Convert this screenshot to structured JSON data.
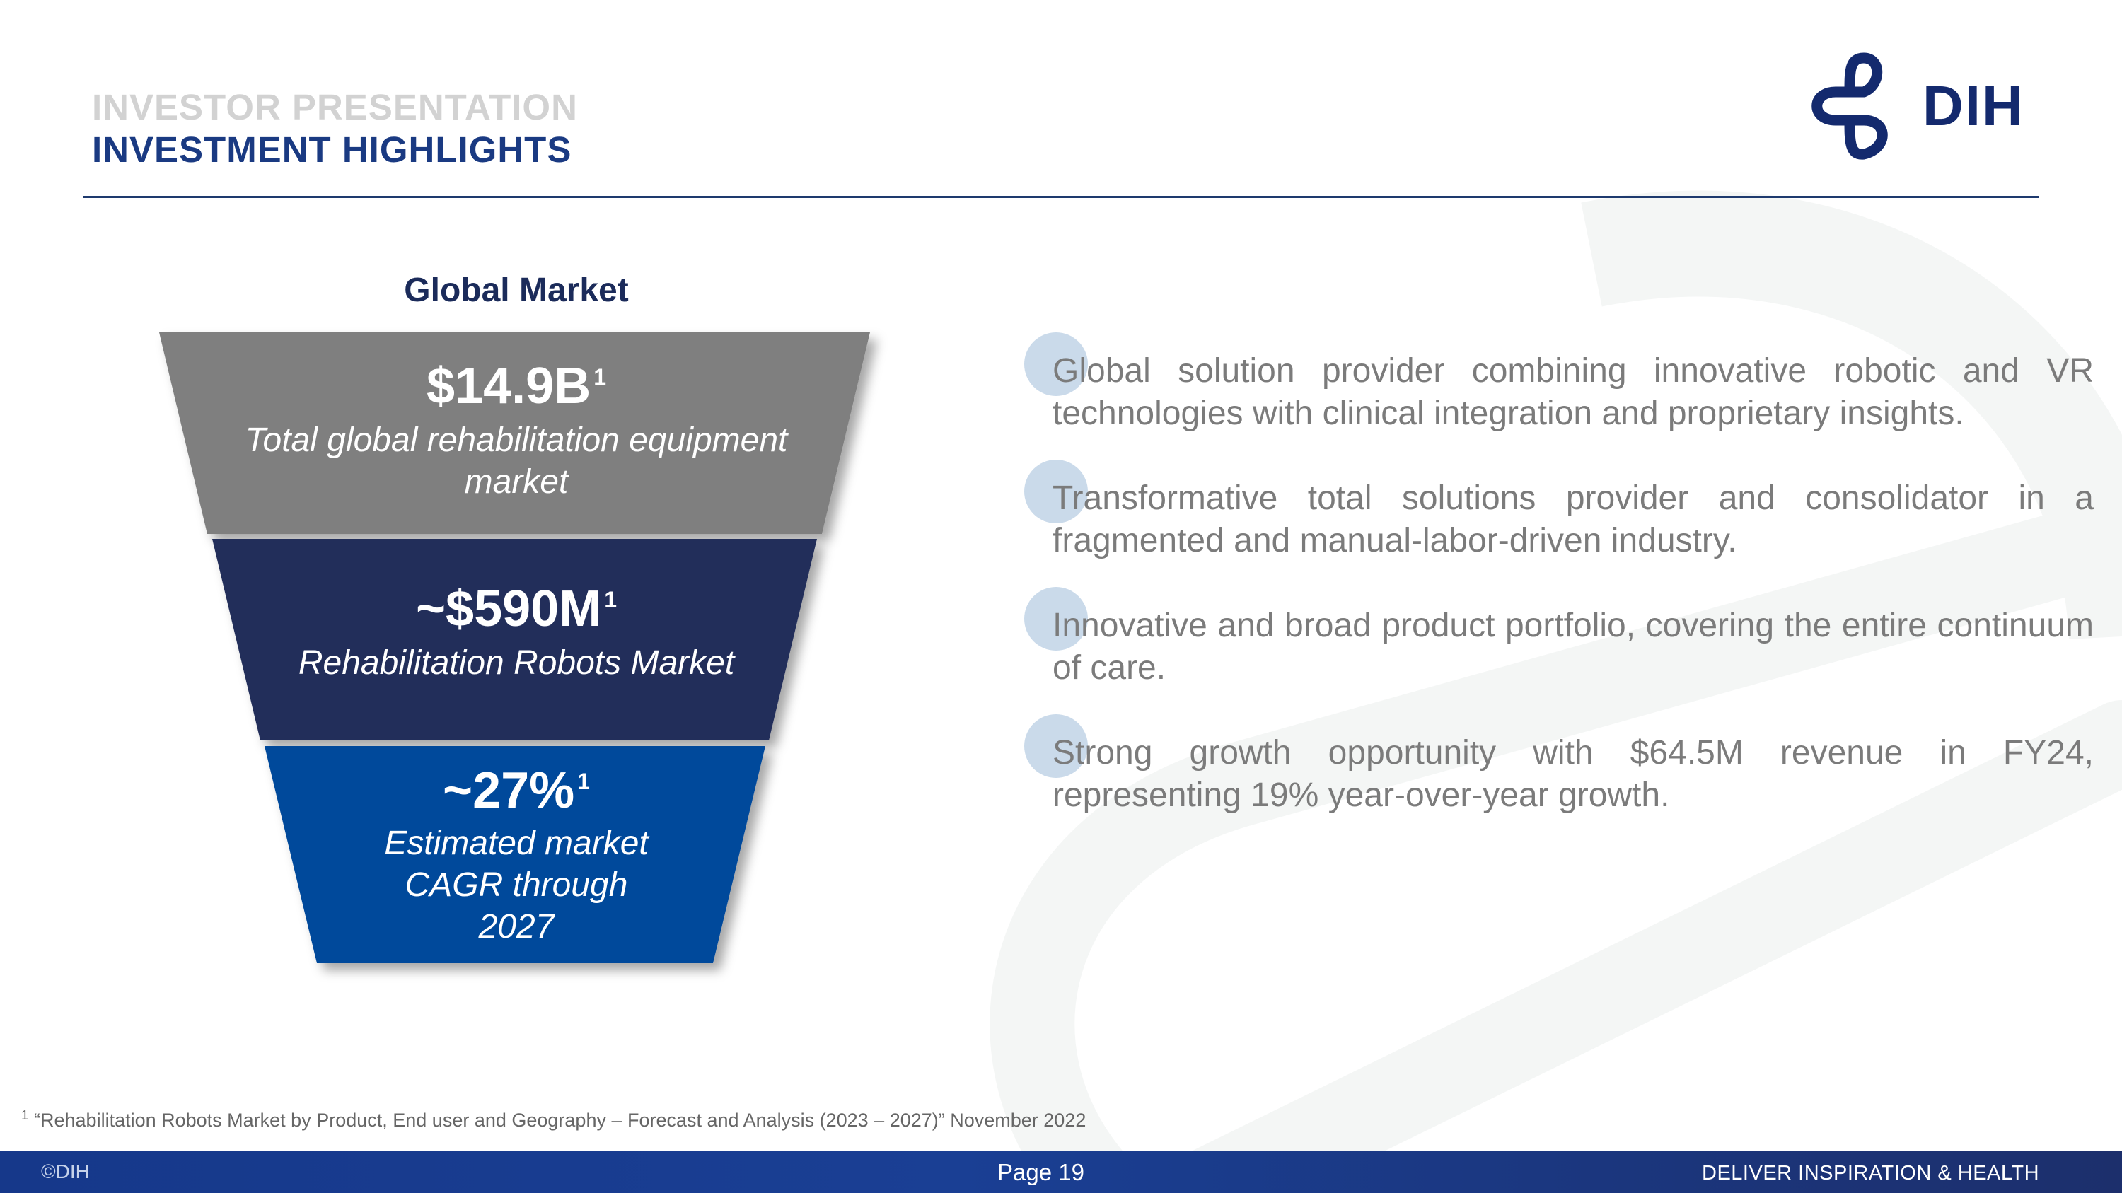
{
  "header": {
    "kicker": "INVESTOR PRESENTATION",
    "title": "INVESTMENT HIGHLIGHTS",
    "logo_text": "DIH"
  },
  "funnel": {
    "heading": "Global Market",
    "tiers": [
      {
        "value": "$14.9B",
        "footnote_ref": "1",
        "label_line1": "Total global rehabilitation equipment",
        "label_line2": "market",
        "color": "#7f7f7f"
      },
      {
        "value": "~$590M",
        "footnote_ref": "1",
        "label_line1": "Rehabilitation Robots Market",
        "color": "#232d5a"
      },
      {
        "value": "~27%",
        "footnote_ref": "1",
        "label_line1": "Estimated market",
        "label_line2": "CAGR through",
        "label_line3": "2027",
        "color": "#03499b"
      }
    ]
  },
  "bullets": [
    "Global solution provider combining innovative robotic and VR technologies with clinical integration and proprietary insights.",
    "Transformative total solutions provider and consolidator in a fragmented and manual-labor-driven industry.",
    "Innovative and broad product portfolio, covering the entire continuum of care.",
    "Strong growth opportunity with $64.5M revenue in FY24, representing 19% year-over-year growth."
  ],
  "footnote": {
    "ref": "1",
    "text": "“Rehabilitation Robots Market by Product, End user and Geography – Forecast and Analysis (2023 – 2027)” November 2022"
  },
  "footer": {
    "copyright": "©DIH",
    "page": "Page 19",
    "tagline": "DELIVER INSPIRATION & HEALTH"
  }
}
